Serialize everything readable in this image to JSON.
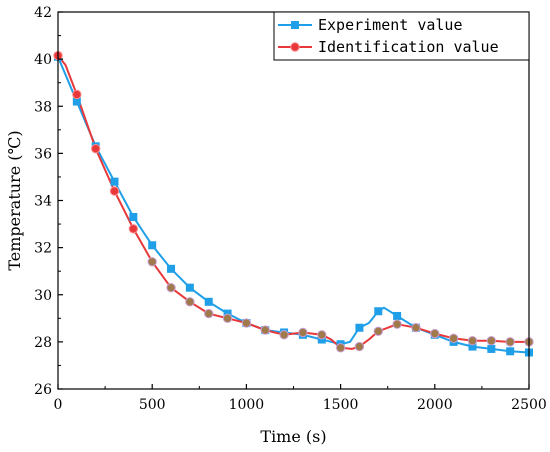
{
  "chart_data": {
    "type": "line",
    "xlabel": "Time (s)",
    "ylabel": "Temperature (℃)",
    "xlim": [
      0,
      2500
    ],
    "ylim": [
      26,
      42
    ],
    "xticks": [
      0,
      500,
      1000,
      1500,
      2000,
      2500
    ],
    "yticks": [
      26,
      28,
      30,
      32,
      34,
      36,
      38,
      40,
      42
    ],
    "grid": false,
    "legend_position": "top-right",
    "series": [
      {
        "name": "Experiment value",
        "color": "#1f9fe8",
        "marker": "square",
        "marker_color": "#1f9fe8",
        "x": [
          0,
          100,
          200,
          300,
          400,
          500,
          600,
          700,
          800,
          900,
          1000,
          1100,
          1200,
          1300,
          1400,
          1500,
          1600,
          1700,
          1800,
          1900,
          2000,
          2100,
          2200,
          2300,
          2400,
          2500
        ],
        "y": [
          40.1,
          38.2,
          36.3,
          34.8,
          33.3,
          32.1,
          31.1,
          30.3,
          29.7,
          29.2,
          28.8,
          28.5,
          28.4,
          28.3,
          28.1,
          27.9,
          28.6,
          29.3,
          29.1,
          28.6,
          28.3,
          28.0,
          27.8,
          27.7,
          27.6,
          27.55
        ],
        "line_x": [
          0,
          100,
          200,
          300,
          400,
          500,
          600,
          700,
          800,
          900,
          1000,
          1100,
          1200,
          1300,
          1400,
          1500,
          1550,
          1600,
          1650,
          1700,
          1730,
          1760,
          1800,
          1900,
          2000,
          2100,
          2200,
          2300,
          2400,
          2500
        ],
        "line_y": [
          40.1,
          38.2,
          36.3,
          34.8,
          33.3,
          32.1,
          31.1,
          30.3,
          29.7,
          29.2,
          28.8,
          28.5,
          28.4,
          28.3,
          28.1,
          27.9,
          28.0,
          28.6,
          28.8,
          29.3,
          29.45,
          29.3,
          29.1,
          28.6,
          28.3,
          28.0,
          27.8,
          27.7,
          27.6,
          27.55
        ]
      },
      {
        "name": "Identification value",
        "color": "#e8383a",
        "marker": "circle",
        "marker_color": "#e8383a",
        "late_marker_color": "#a07a4a",
        "late_marker_from_index": 5,
        "x": [
          0,
          100,
          200,
          300,
          400,
          500,
          600,
          700,
          800,
          900,
          1000,
          1100,
          1200,
          1300,
          1400,
          1500,
          1600,
          1700,
          1800,
          1900,
          2000,
          2100,
          2200,
          2300,
          2400,
          2500
        ],
        "y": [
          40.15,
          38.5,
          36.2,
          34.4,
          32.8,
          31.4,
          30.3,
          29.7,
          29.2,
          29.0,
          28.8,
          28.5,
          28.3,
          28.4,
          28.3,
          27.75,
          27.8,
          28.45,
          28.75,
          28.6,
          28.35,
          28.15,
          28.05,
          28.05,
          28.0,
          28.0
        ],
        "line_x": [
          0,
          40,
          100,
          200,
          300,
          400,
          500,
          600,
          700,
          800,
          900,
          1000,
          1100,
          1200,
          1300,
          1400,
          1450,
          1500,
          1560,
          1600,
          1650,
          1700,
          1800,
          1900,
          2000,
          2100,
          2200,
          2300,
          2400,
          2500
        ],
        "line_y": [
          40.15,
          39.75,
          38.5,
          36.2,
          34.4,
          32.8,
          31.4,
          30.3,
          29.7,
          29.2,
          29.0,
          28.8,
          28.5,
          28.3,
          28.4,
          28.3,
          28.1,
          27.75,
          27.7,
          27.8,
          28.1,
          28.45,
          28.75,
          28.6,
          28.35,
          28.15,
          28.05,
          28.05,
          28.0,
          28.0
        ]
      }
    ]
  }
}
